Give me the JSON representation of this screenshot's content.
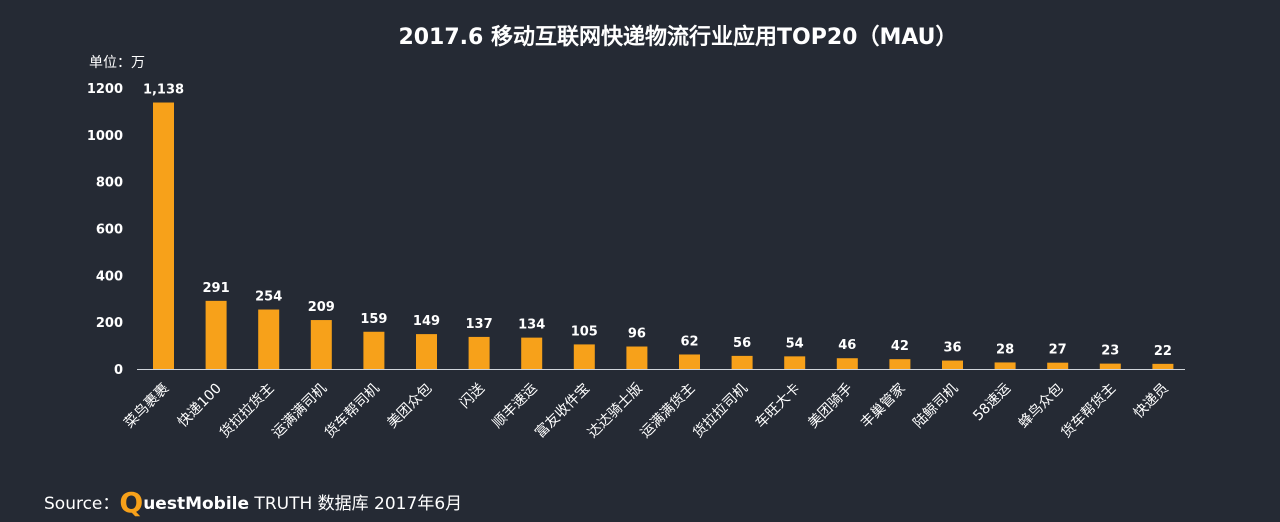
{
  "chart_data": {
    "type": "bar",
    "title": "2017.6 移动互联网快递物流行业应用TOP20（MAU）",
    "unit_label": "单位：万",
    "categories": [
      "菜鸟裹裹",
      "快递100",
      "货拉拉货主",
      "运满满司机",
      "货车帮司机",
      "美团众包",
      "闪送",
      "顺丰速运",
      "富友收件宝",
      "达达骑士版",
      "运满满货主",
      "货拉拉司机",
      "车旺大卡",
      "美团骑手",
      "丰巢管家",
      "陆鲸司机",
      "58速运",
      "蜂鸟众包",
      "货车帮货主",
      "快递员"
    ],
    "values": [
      1138,
      291,
      254,
      209,
      159,
      149,
      137,
      134,
      105,
      96,
      62,
      56,
      54,
      46,
      42,
      36,
      28,
      27,
      23,
      22
    ],
    "value_labels": [
      "1,138",
      "291",
      "254",
      "209",
      "159",
      "149",
      "137",
      "134",
      "105",
      "96",
      "62",
      "56",
      "54",
      "46",
      "42",
      "36",
      "28",
      "27",
      "23",
      "22"
    ],
    "yticks": [
      0,
      200,
      400,
      600,
      800,
      1000,
      1200
    ],
    "ylim": [
      0,
      1200
    ],
    "bar_color": "#f7a11a",
    "grid": false,
    "legend": "none"
  },
  "source": {
    "lead": "Source：",
    "brand_q": "Q",
    "brand_rest": "uestMobile",
    "tail": " TRUTH 数据库 2017年6月"
  }
}
